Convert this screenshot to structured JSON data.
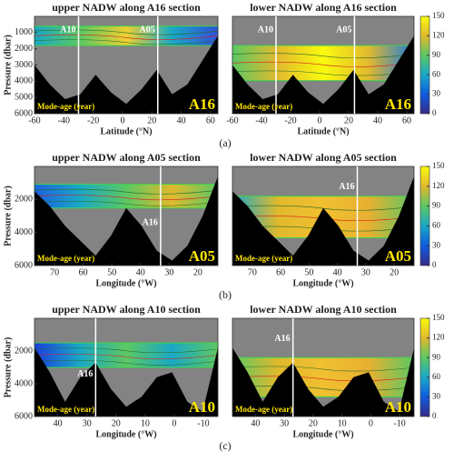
{
  "chart_data": [
    {
      "type": "section",
      "title": "upper NADW along A16 section",
      "xlabel": "Latitude (°N)",
      "ylabel": "Pressure (dbar)",
      "xlim": [
        -60,
        65
      ],
      "xticks": [
        -60,
        -40,
        -20,
        0,
        20,
        40,
        60
      ],
      "ylim": [
        0,
        6000
      ],
      "yticks": [
        1000,
        2000,
        3000,
        4000,
        5000,
        6000
      ],
      "annotation": "Mode-age (year)",
      "section_label": "A16",
      "markers": [
        {
          "x": -30,
          "label": "A10"
        },
        {
          "x": 24,
          "label": "A05"
        }
      ]
    },
    {
      "type": "section",
      "title": "lower NADW along A16 section",
      "xlabel": "Latitude (°N)",
      "xlim": [
        -60,
        65
      ],
      "xticks": [
        -60,
        -40,
        -20,
        0,
        20,
        40,
        60
      ],
      "ylim": [
        0,
        6000
      ],
      "annotation": "Mode-age (year)",
      "section_label": "A16",
      "markers": [
        {
          "x": -30,
          "label": "A10"
        },
        {
          "x": 24,
          "label": "A05"
        }
      ]
    },
    {
      "type": "section",
      "title": "upper NADW along A05 section",
      "xlabel": "Longitude (°W)",
      "ylabel": "Pressure (dbar)",
      "xlim": [
        77,
        13
      ],
      "xticks": [
        70,
        60,
        50,
        40,
        30,
        20
      ],
      "ylim": [
        0,
        6000
      ],
      "yticks": [
        2000,
        4000,
        6000
      ],
      "annotation": "Mode-age (year)",
      "section_label": "A05",
      "markers": [
        {
          "x": 33,
          "label": "A16"
        }
      ]
    },
    {
      "type": "section",
      "title": "lower NADW along A05 section",
      "xlabel": "Longitude (°W)",
      "xlim": [
        77,
        13
      ],
      "xticks": [
        70,
        60,
        50,
        40,
        30,
        20
      ],
      "ylim": [
        0,
        6000
      ],
      "annotation": "Mode-age (year)",
      "section_label": "A05",
      "markers": [
        {
          "x": 33,
          "label": "A16"
        }
      ]
    },
    {
      "type": "section",
      "title": "upper NADW along A10 section",
      "xlabel": "Longitude (°W)",
      "ylabel": "Pressure (dbar)",
      "xlim": [
        48,
        -15
      ],
      "xticks": [
        40,
        30,
        20,
        10,
        0,
        -10
      ],
      "ylim": [
        0,
        6000
      ],
      "yticks": [
        2000,
        4000,
        6000
      ],
      "annotation": "Mode-age (year)",
      "section_label": "A10",
      "markers": [
        {
          "x": 27,
          "label": "A16"
        }
      ]
    },
    {
      "type": "section",
      "title": "lower NADW along A10 section",
      "xlabel": "Longitude (°W)",
      "xlim": [
        48,
        -15
      ],
      "xticks": [
        40,
        30,
        20,
        10,
        0,
        -10
      ],
      "ylim": [
        0,
        6000
      ],
      "annotation": "Mode-age (year)",
      "section_label": "A10",
      "markers": [
        {
          "x": 27,
          "label": "A16"
        }
      ]
    }
  ],
  "colorbar": {
    "clim": [
      0,
      150
    ],
    "ticks": [
      0,
      30,
      60,
      90,
      120,
      150
    ]
  },
  "captions": [
    "(a)",
    "(b)",
    "(c)"
  ]
}
